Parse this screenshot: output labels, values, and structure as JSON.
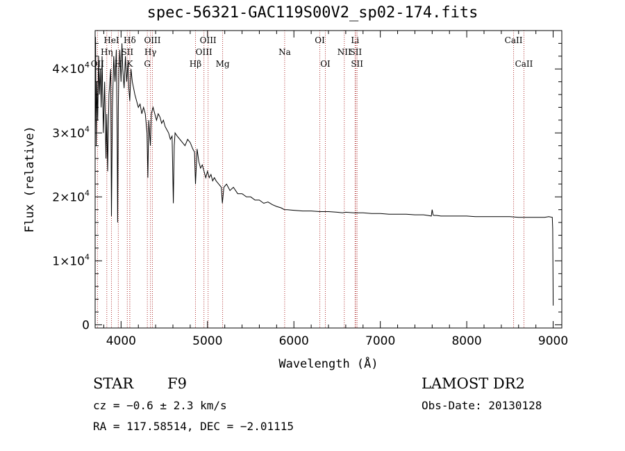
{
  "chart_data": {
    "type": "line",
    "title": "spec-56321-GAC119S00V2_sp02-174.fits",
    "xlabel": "Wavelength (Å)",
    "ylabel": "Flux (relative)",
    "xlim": [
      3700,
      9100
    ],
    "ylim": [
      -500,
      46000
    ],
    "x_ticks": [
      4000,
      5000,
      6000,
      7000,
      8000,
      9000
    ],
    "x_tick_labels": [
      "4000",
      "5000",
      "6000",
      "7000",
      "8000",
      "9000"
    ],
    "y_ticks": [
      0,
      10000,
      20000,
      30000,
      40000
    ],
    "y_tick_labels": [
      {
        "mant": "0",
        "exp": ""
      },
      {
        "mant": "1×10",
        "exp": "4"
      },
      {
        "mant": "2×10",
        "exp": "4"
      },
      {
        "mant": "3×10",
        "exp": "4"
      },
      {
        "mant": "4×10",
        "exp": "4"
      }
    ],
    "grid": false,
    "series": [
      {
        "x": [
          3700,
          3705,
          3712,
          3720,
          3730,
          3740,
          3750,
          3760,
          3770,
          3780,
          3795,
          3810,
          3825,
          3835,
          3845,
          3860,
          3880,
          3889,
          3900,
          3915,
          3930,
          3945,
          3955,
          3960,
          3968,
          3975,
          3985,
          4000,
          4010,
          4020,
          4035,
          4050,
          4065,
          4080,
          4090,
          4101,
          4115,
          4130,
          4145,
          4160,
          4180,
          4200,
          4220,
          4240,
          4260,
          4280,
          4300,
          4310,
          4320,
          4330,
          4340,
          4350,
          4370,
          4390,
          4410,
          4430,
          4450,
          4470,
          4490,
          4510,
          4530,
          4550,
          4570,
          4590,
          4605,
          4615,
          4625,
          4650,
          4680,
          4710,
          4740,
          4770,
          4800,
          4830,
          4850,
          4861,
          4880,
          4900,
          4920,
          4940,
          4960,
          4980,
          5000,
          5020,
          5040,
          5060,
          5080,
          5100,
          5130,
          5160,
          5172,
          5190,
          5220,
          5260,
          5300,
          5350,
          5400,
          5450,
          5500,
          5550,
          5600,
          5650,
          5700,
          5750,
          5800,
          5850,
          5890,
          5920,
          6000,
          6100,
          6200,
          6300,
          6400,
          6500,
          6562,
          6600,
          6700,
          6800,
          6900,
          7000,
          7100,
          7200,
          7300,
          7400,
          7500,
          7550,
          7590,
          7600,
          7610,
          7620,
          7650,
          7700,
          7800,
          7900,
          8000,
          8100,
          8200,
          8300,
          8400,
          8500,
          8600,
          8700,
          8800,
          8900,
          8950,
          8990,
          8995,
          9000
        ],
        "values": [
          30000,
          45000,
          28000,
          38000,
          32000,
          42000,
          36000,
          40000,
          34000,
          42000,
          30000,
          38000,
          26000,
          33000,
          24000,
          36000,
          40000,
          17000,
          34000,
          42000,
          38000,
          43000,
          30000,
          16000,
          34000,
          40000,
          43000,
          38000,
          44000,
          40000,
          37000,
          42000,
          38000,
          41000,
          37000,
          35000,
          40000,
          38000,
          37000,
          36000,
          35000,
          34000,
          34500,
          33000,
          34000,
          33000,
          30000,
          23000,
          32000,
          30000,
          28000,
          33000,
          34000,
          33000,
          32000,
          33000,
          32500,
          31500,
          32000,
          31000,
          30500,
          30000,
          29000,
          29500,
          19000,
          28000,
          30000,
          29500,
          29000,
          28500,
          28000,
          29000,
          28500,
          27500,
          27000,
          22000,
          27500,
          25500,
          24500,
          25000,
          24000,
          23000,
          24000,
          23000,
          23500,
          22500,
          23000,
          22500,
          22000,
          21500,
          19000,
          21500,
          22000,
          21000,
          21500,
          20500,
          20500,
          20000,
          20000,
          19500,
          19500,
          19000,
          19200,
          18800,
          18500,
          18300,
          18000,
          18000,
          17900,
          17800,
          17800,
          17700,
          17700,
          17600,
          17500,
          17600,
          17500,
          17500,
          17400,
          17400,
          17300,
          17300,
          17300,
          17200,
          17200,
          17100,
          17000,
          18000,
          17200,
          17100,
          17100,
          17000,
          17000,
          17000,
          17000,
          16900,
          16900,
          16900,
          16900,
          16900,
          16800,
          16800,
          16800,
          16800,
          16900,
          16800,
          15000,
          3000
        ]
      }
    ],
    "lines": [
      {
        "wl": 3727,
        "label": "OII",
        "row": 3
      },
      {
        "wl": 3835,
        "label": "Hη",
        "row": 2
      },
      {
        "wl": 3889,
        "label": "HeI",
        "row": 1
      },
      {
        "wl": 3968,
        "label": "H",
        "row": 3
      },
      {
        "wl": 4072,
        "label": "SII",
        "row": 2
      },
      {
        "wl": 4101,
        "label": "Hδ",
        "row": 1
      },
      {
        "wl": 4101,
        "label": "K",
        "row": 3
      },
      {
        "wl": 4304,
        "label": "G",
        "row": 3
      },
      {
        "wl": 4340,
        "label": "Hγ",
        "row": 2
      },
      {
        "wl": 4363,
        "label": "OIII",
        "row": 1
      },
      {
        "wl": 4861,
        "label": "Hβ",
        "row": 3
      },
      {
        "wl": 4959,
        "label": "OIII",
        "row": 2
      },
      {
        "wl": 5007,
        "label": "OIII",
        "row": 1
      },
      {
        "wl": 5175,
        "label": "Mg",
        "row": 3
      },
      {
        "wl": 5893,
        "label": "Na",
        "row": 2
      },
      {
        "wl": 6300,
        "label": "OI",
        "row": 1
      },
      {
        "wl": 6364,
        "label": "OI",
        "row": 3
      },
      {
        "wl": 6583,
        "label": "NII",
        "row": 2
      },
      {
        "wl": 6708,
        "label": "Li",
        "row": 1
      },
      {
        "wl": 6716,
        "label": "SII",
        "row": 2
      },
      {
        "wl": 6731,
        "label": "SII",
        "row": 3
      },
      {
        "wl": 8542,
        "label": "CaII",
        "row": 1
      },
      {
        "wl": 8662,
        "label": "CaII",
        "row": 3
      }
    ],
    "colors": {
      "spectrum": "#000000",
      "line_marker": "#b03030",
      "axis": "#000000"
    }
  },
  "info": {
    "object_class": "STAR",
    "subclass": "F9",
    "redshift": "cz = −0.6 ± 2.3 km/s",
    "coords": "RA = 117.58514, DEC =  −2.01115",
    "survey": "LAMOST DR2",
    "obs_date": "Obs-Date: 20130128"
  }
}
